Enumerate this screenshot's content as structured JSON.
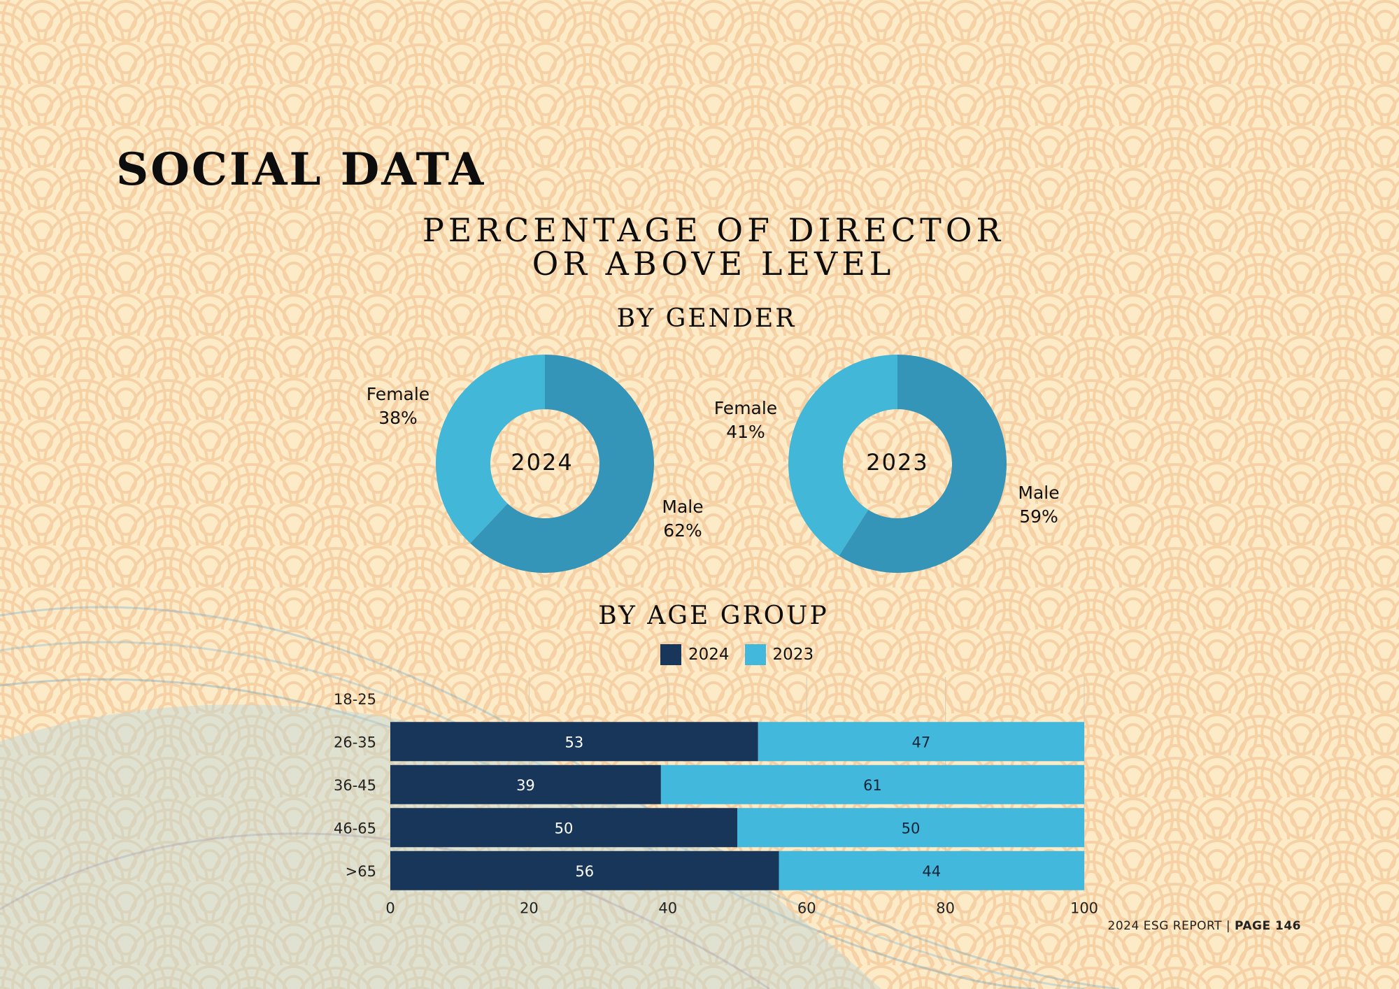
{
  "page": {
    "title": "SOCIAL DATA",
    "main_title_line1": "PERCENTAGE OF DIRECTOR",
    "main_title_line2": "OR ABOVE LEVEL",
    "gender_subtitle": "BY GENDER",
    "age_subtitle": "BY AGE GROUP",
    "footer_report": "2024 ESG REPORT | ",
    "footer_page": "PAGE 146"
  },
  "colors": {
    "male": "#3595b8",
    "female": "#42b7d8",
    "bar_2024": "#17365a",
    "bar_2023": "#41b8dc"
  },
  "chart_data": [
    {
      "type": "pie",
      "title": "2024",
      "categories": [
        "Female",
        "Male"
      ],
      "values": [
        38,
        62
      ],
      "labels": [
        {
          "name": "Female",
          "value": "38%"
        },
        {
          "name": "Male",
          "value": "62%"
        }
      ]
    },
    {
      "type": "pie",
      "title": "2023",
      "categories": [
        "Female",
        "Male"
      ],
      "values": [
        41,
        59
      ],
      "labels": [
        {
          "name": "Female",
          "value": "41%"
        },
        {
          "name": "Male",
          "value": "59%"
        }
      ]
    },
    {
      "type": "bar",
      "orientation": "horizontal",
      "stacked": true,
      "title": "BY AGE GROUP",
      "categories": [
        "18-25",
        "26-35",
        "36-45",
        "46-65",
        ">65"
      ],
      "series": [
        {
          "name": "2024",
          "values": [
            null,
            53,
            39,
            50,
            56
          ]
        },
        {
          "name": "2023",
          "values": [
            null,
            47,
            61,
            50,
            44
          ]
        }
      ],
      "xlim": [
        0,
        100
      ],
      "xticks": [
        0,
        20,
        40,
        60,
        80,
        100
      ],
      "legend": [
        "2024",
        "2023"
      ],
      "legend_position": "top-center",
      "grid": true
    }
  ]
}
